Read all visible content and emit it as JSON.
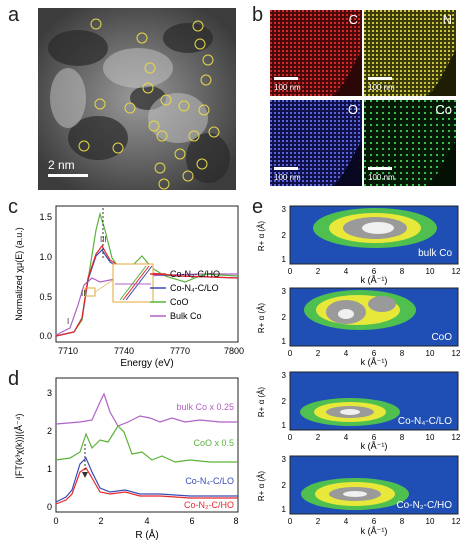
{
  "panels": {
    "a": "a",
    "b": "b",
    "c": "c",
    "d": "d",
    "e": "e"
  },
  "panel_a": {
    "scale_label": "2 nm"
  },
  "panel_b": {
    "tiles": [
      {
        "element": "C",
        "color": "#d02a2a",
        "scale": "100 nm"
      },
      {
        "element": "N",
        "color": "#c9c23a",
        "scale": "100 nm"
      },
      {
        "element": "O",
        "color": "#5a63d8",
        "scale": "100 nm"
      },
      {
        "element": "Co",
        "color": "#36c04a",
        "scale": "100 nm"
      }
    ]
  },
  "panel_c": {
    "xlabel": "Energy (eV)",
    "ylabel": "Normalized χμ(E) (a.u.)",
    "xticks": [
      "7710",
      "7740",
      "7770",
      "7800"
    ],
    "yticks": [
      "0.0",
      "0.5",
      "1.0",
      "1.5"
    ],
    "inset_marks": [
      "I",
      "II",
      "III"
    ],
    "legend": [
      {
        "label": "Co-N₂-C/HO",
        "color": "#e8262b"
      },
      {
        "label": "Co-N₄-C/LO",
        "color": "#3a4bb3"
      },
      {
        "label": "CoO",
        "color": "#5ab33a"
      },
      {
        "label": "Bulk Co",
        "color": "#b062c6"
      }
    ]
  },
  "panel_d": {
    "xlabel": "R (Å)",
    "ylabel": "|FT(k³χ(k))|(Å⁻⁴)",
    "xticks": [
      "0",
      "2",
      "4",
      "6",
      "8"
    ],
    "yticks": [
      "0",
      "1",
      "2",
      "3"
    ],
    "curve_labels": [
      {
        "text": "bulk Co x 0.25",
        "color": "#b062c6"
      },
      {
        "text": "CoO x 0.5",
        "color": "#5ab33a"
      },
      {
        "text": "Co-N₄-C/LO",
        "color": "#3a4bb3"
      },
      {
        "text": "Co-N₂-C/HO",
        "color": "#e8262b"
      }
    ]
  },
  "panel_e": {
    "xlabel": "k (Å⁻¹)",
    "ylabel": "R+ α (Å)",
    "xticks": [
      "0",
      "2",
      "4",
      "6",
      "8",
      "10",
      "12"
    ],
    "yticks": [
      "1",
      "2",
      "3"
    ],
    "maps": [
      {
        "label": "bulk Co"
      },
      {
        "label": "CoO"
      },
      {
        "label": "Co-N₄-C/LO"
      },
      {
        "label": "Co-N₂-C/HO"
      }
    ]
  }
}
